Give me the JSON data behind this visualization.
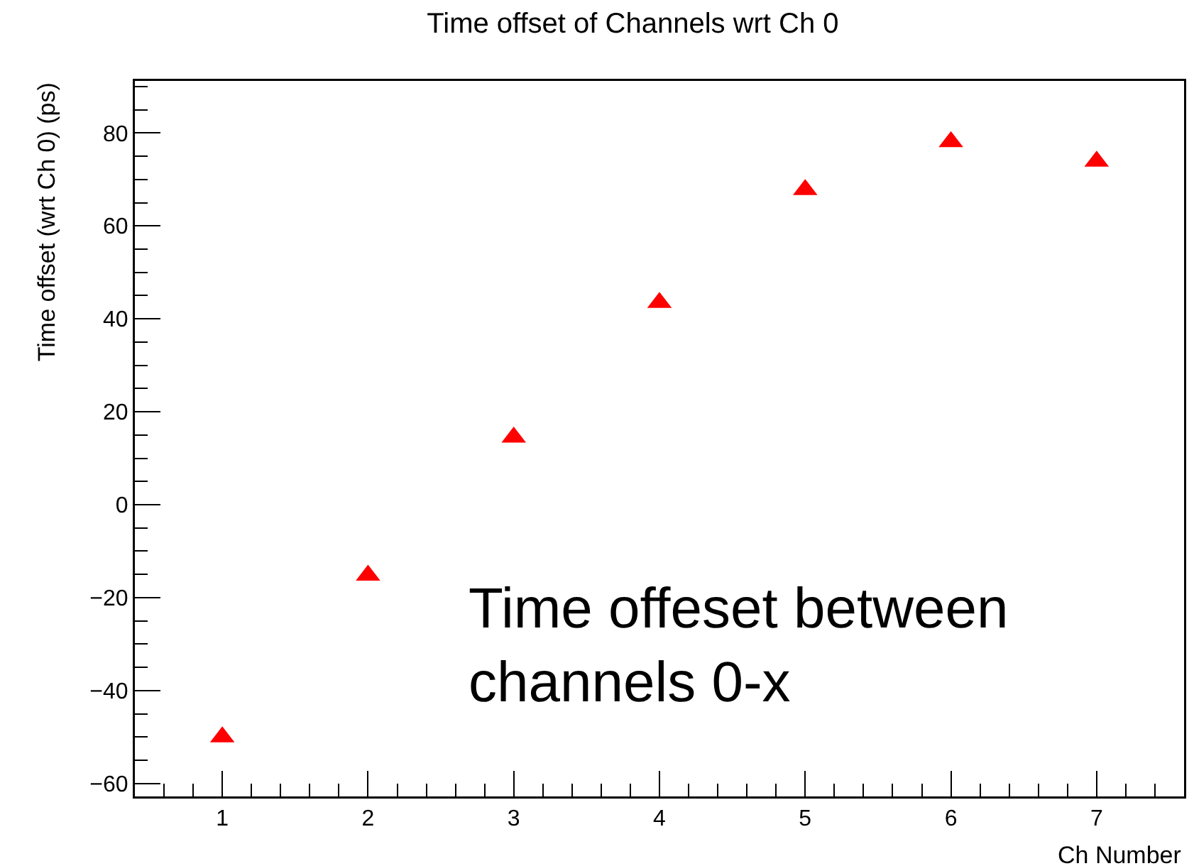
{
  "chart_data": {
    "type": "scatter",
    "title": "Time offset of Channels wrt Ch 0",
    "xlabel": "Ch Number",
    "ylabel": "Time offset (wrt Ch 0) (ps)",
    "annotations": [
      "Time offeset between channels 0-x"
    ],
    "x": [
      1,
      2,
      3,
      4,
      5,
      6,
      7
    ],
    "series": [
      {
        "color": "#ff0000",
        "values": [
          -50,
          -15.2,
          14.5,
          43.5,
          67.8,
          78.1,
          73.9
        ]
      }
    ],
    "xlim": [
      0.4,
      7.6
    ],
    "xticks": [
      1,
      2,
      3,
      4,
      5,
      6,
      7
    ],
    "ylim": [
      -62.8,
      91.2
    ],
    "yticks": [
      -60,
      -40,
      -20,
      0,
      20,
      40,
      60,
      80
    ],
    "marker": "triangle"
  }
}
